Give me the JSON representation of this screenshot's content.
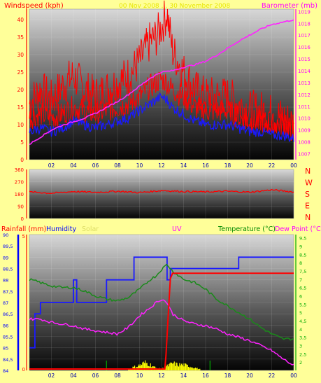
{
  "colors": {
    "page_bg": "#ffff99",
    "wind": "#ff0000",
    "gust": "#ff0000",
    "avg_wind": "#1a1aff",
    "pressure": "#ff22ff",
    "direction": "#ff0000",
    "rain": "#ff0000",
    "humidity": "#1a1aff",
    "solar": "#ffff00",
    "uv": "#00aa00",
    "temperature": "#1a8a1a",
    "dew_point": "#ff22ff",
    "axis_left": "#ff0000",
    "axis_pressure": "#ff00ff",
    "axis_humidity": "#0000ff",
    "axis_temp": "#00aa00",
    "title_faint": "#e6e600"
  },
  "header": {
    "title": "00 Nov 2008 … 30 November 2008",
    "left_label": "Windspeed (kph)",
    "right_label": "Barometer (mb)"
  },
  "direction_letters": [
    "N",
    "W",
    "S",
    "E",
    "N"
  ],
  "legend": {
    "rainfall": "Rainfall (mm)",
    "humidity": "Humidity",
    "solar": "Solar",
    "uv": "UV",
    "temperature": "Temperature (°C)",
    "dew_point": "Dew Point (°C)"
  },
  "chart_data": [
    {
      "type": "line",
      "name": "wind",
      "x_ticks": [
        "02",
        "04",
        "06",
        "08",
        "10",
        "12",
        "14",
        "16",
        "18",
        "20",
        "22",
        "00"
      ],
      "x_range": [
        0,
        24
      ],
      "y_ticks": [
        0,
        5,
        10,
        15,
        20,
        25,
        30,
        35,
        40
      ],
      "ylim": [
        0,
        43
      ],
      "y2_ticks": [
        1007,
        1008,
        1009,
        1010,
        1011,
        1012,
        1013,
        1014,
        1015,
        1016,
        1017,
        1018,
        1019
      ],
      "y2lim": [
        1006.5,
        1019.2
      ],
      "series": [
        {
          "axis": "left",
          "x": [
            0,
            1,
            2,
            3,
            4,
            5,
            6,
            7,
            8,
            9,
            10,
            11,
            11.5,
            12,
            12.5,
            13,
            14,
            15,
            16,
            17,
            18,
            19,
            20,
            21,
            22,
            23,
            24
          ],
          "values": [
            16,
            20,
            17,
            21,
            24,
            20,
            18,
            20,
            22,
            24,
            28,
            34,
            35,
            38,
            42,
            31,
            25,
            20,
            18,
            18,
            18,
            16,
            14,
            14,
            13,
            12,
            10
          ]
        },
        {
          "axis": "left",
          "x": [
            0,
            1,
            2,
            3,
            4,
            5,
            6,
            7,
            8,
            9,
            10,
            11,
            11.5,
            12,
            12.5,
            13,
            14,
            15,
            16,
            17,
            18,
            19,
            20,
            21,
            22,
            23,
            24
          ],
          "values": [
            12,
            13,
            12,
            13,
            15,
            14,
            13,
            14,
            15,
            16,
            18,
            21,
            22,
            23,
            22,
            20,
            18,
            15,
            14,
            14,
            14,
            12,
            11,
            11,
            10,
            10,
            8
          ]
        },
        {
          "axis": "left",
          "x": [
            0,
            1,
            2,
            3,
            4,
            5,
            6,
            7,
            8,
            9,
            10,
            11,
            11.5,
            12,
            12.5,
            13,
            14,
            15,
            16,
            17,
            18,
            19,
            20,
            21,
            22,
            23,
            24
          ],
          "values": [
            8,
            9,
            8,
            9,
            11,
            10,
            9,
            10,
            11,
            12,
            14,
            16,
            17,
            18,
            17,
            15,
            13,
            11,
            10,
            10,
            10,
            9,
            8,
            8,
            7,
            7,
            6
          ]
        },
        {
          "axis": "right",
          "x": [
            0,
            1,
            2,
            3,
            4,
            5,
            6,
            7,
            8,
            9,
            10,
            11,
            12,
            13,
            14,
            15,
            16,
            17,
            18,
            19,
            20,
            21,
            22,
            23,
            24
          ],
          "values": [
            1007.8,
            1008.4,
            1009.0,
            1009.4,
            1009.7,
            1010.0,
            1010.4,
            1010.9,
            1011.4,
            1012.0,
            1012.7,
            1013.4,
            1013.9,
            1014.0,
            1014.3,
            1014.5,
            1014.8,
            1015.3,
            1015.9,
            1016.5,
            1017.0,
            1017.5,
            1017.9,
            1018.1,
            1018.3
          ]
        }
      ]
    },
    {
      "type": "line",
      "name": "wind_direction",
      "y_ticks": [
        0,
        90,
        180,
        270,
        360
      ],
      "ylim": [
        0,
        360
      ],
      "x": [
        0,
        2,
        4,
        6,
        8,
        10,
        12,
        14,
        16,
        18,
        20,
        22,
        24
      ],
      "values": [
        195,
        185,
        198,
        192,
        200,
        190,
        205,
        198,
        195,
        200,
        193,
        210,
        195
      ]
    },
    {
      "type": "line",
      "name": "rain_humidity_temp",
      "x_ticks": [
        "02",
        "04",
        "06",
        "08",
        "10",
        "12",
        "14",
        "16",
        "18",
        "20",
        "22",
        "00"
      ],
      "x_range": [
        0,
        24
      ],
      "rain_ticks": [
        0,
        5
      ],
      "rain_lim": [
        0,
        5
      ],
      "humidity_ticks": [
        84,
        84.5,
        85,
        85.5,
        86,
        86.5,
        87,
        87.5,
        88,
        88.5,
        89,
        89.5,
        90
      ],
      "humidity_lim": [
        84,
        90
      ],
      "temp_ticks": [
        2,
        2.5,
        3,
        3.5,
        4,
        4.5,
        5,
        5.5,
        6,
        6.5,
        7,
        7.5,
        8,
        8.5,
        9,
        9.5
      ],
      "temp_lim": [
        1.5,
        9.7
      ],
      "series": [
        {
          "axis": "humidity",
          "x": [
            0,
            0.5,
            0.5,
            1,
            1,
            1.3,
            1.3,
            4,
            4,
            4.3,
            4.3,
            7,
            7,
            7.5,
            7.5,
            9.5,
            9.5,
            12.5,
            12.5,
            12.8,
            12.8,
            19,
            19,
            19.3,
            19.3,
            24
          ],
          "values": [
            85,
            85,
            86.5,
            86.5,
            87,
            87,
            87,
            87,
            88,
            88,
            87,
            87,
            88,
            88,
            88,
            88,
            89,
            89,
            88,
            88,
            88.5,
            88.5,
            89,
            89,
            89,
            89
          ]
        },
        {
          "axis": "temp",
          "x": [
            0,
            1,
            2,
            3,
            4,
            5,
            6,
            7,
            8,
            9,
            10,
            11,
            11.5,
            12,
            12.5,
            13,
            14,
            15,
            16,
            17,
            18,
            19,
            20,
            21,
            22,
            23,
            24
          ],
          "values": [
            7.0,
            6.8,
            6.6,
            6.5,
            6.5,
            6.3,
            6.0,
            5.8,
            5.7,
            5.9,
            6.4,
            7.0,
            7.2,
            7.6,
            7.9,
            7.5,
            7.0,
            6.8,
            6.4,
            5.8,
            5.4,
            5.0,
            4.6,
            4.1,
            3.7,
            3.4,
            3.4
          ]
        },
        {
          "axis": "temp",
          "x": [
            0,
            1,
            2,
            3,
            4,
            5,
            6,
            7,
            8,
            9,
            10,
            11,
            11.5,
            12,
            12.5,
            13,
            14,
            15,
            16,
            17,
            18,
            19,
            20,
            21,
            22,
            23,
            24
          ],
          "values": [
            4.6,
            4.6,
            4.4,
            4.3,
            4.2,
            4.0,
            3.9,
            3.8,
            3.7,
            4.1,
            4.8,
            5.3,
            5.6,
            5.8,
            5.6,
            4.9,
            4.5,
            4.3,
            4.2,
            4.0,
            3.7,
            3.5,
            3.3,
            3.0,
            2.7,
            2.2,
            1.8
          ]
        },
        {
          "axis": "rain",
          "x": [
            0,
            12.3,
            12.4,
            12.6,
            12.8,
            13,
            24
          ],
          "values": [
            0,
            0,
            0.5,
            2,
            3.4,
            3.6,
            3.6
          ]
        },
        {
          "axis": "uv",
          "bars_x": [
            7.0,
            16.4
          ],
          "bars_h": [
            0.35,
            0.35
          ]
        },
        {
          "axis": "solar",
          "x": [
            9.0,
            9.5,
            10,
            10.5,
            11,
            11.5,
            12,
            12.5,
            13,
            13.5,
            14,
            14.5,
            15,
            15.5
          ],
          "values": [
            0.05,
            0.12,
            0.18,
            0.28,
            0.2,
            0.08,
            0.05,
            0.15,
            0.25,
            0.2,
            0.2,
            0.15,
            0.1,
            0.04
          ]
        }
      ]
    }
  ]
}
